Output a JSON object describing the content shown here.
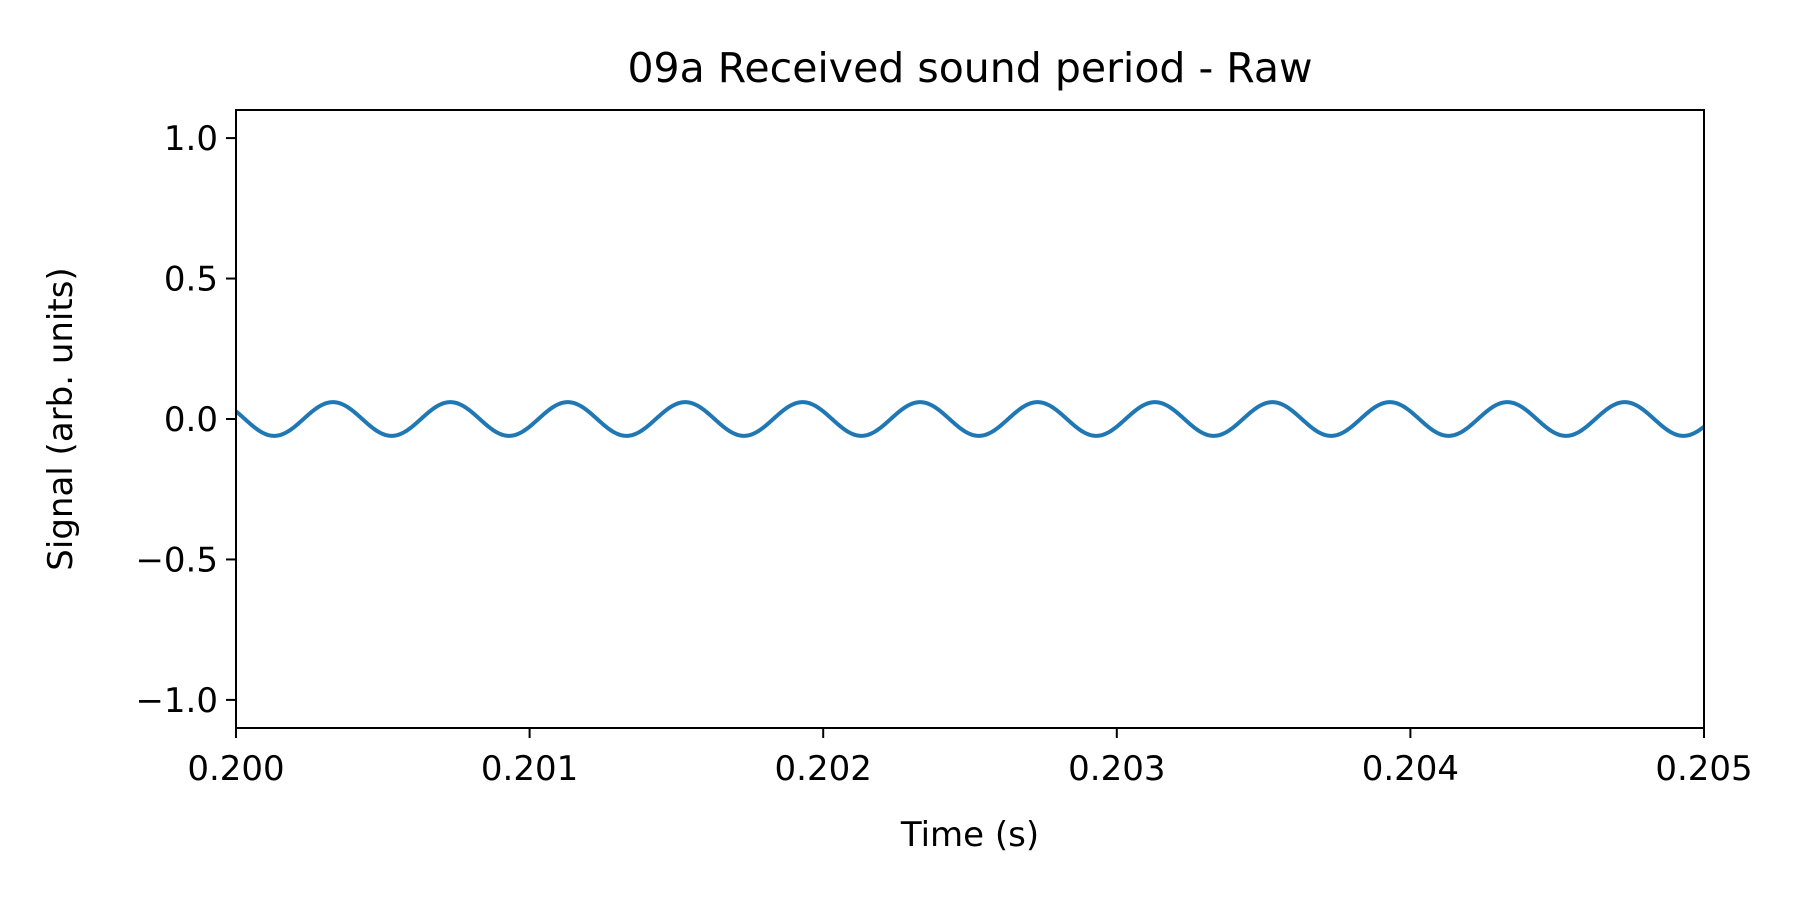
{
  "chart_data": {
    "type": "line",
    "title": "09a Received sound period - Raw",
    "xlabel": "Time (s)",
    "ylabel": "Signal (arb. units)",
    "xlim": [
      0.2,
      0.205
    ],
    "ylim": [
      -1.1,
      1.1
    ],
    "xticks": [
      0.2,
      0.201,
      0.202,
      0.203,
      0.204,
      0.205
    ],
    "xtick_labels": [
      "0.200",
      "0.201",
      "0.202",
      "0.203",
      "0.204",
      "0.205"
    ],
    "yticks": [
      -1.0,
      -0.5,
      0.0,
      0.5,
      1.0
    ],
    "ytick_labels": [
      "−1.0",
      "−0.5",
      "0.0",
      "0.5",
      "1.0"
    ],
    "grid": false,
    "series": [
      {
        "color": "#1f77b4",
        "waveform": "sine",
        "amplitude": 0.06,
        "frequency_hz": 2500,
        "peak_times": [
          0.20033,
          0.20073,
          0.20113,
          0.20153,
          0.20193,
          0.20233,
          0.20273,
          0.20313,
          0.20353,
          0.20393,
          0.20433,
          0.20473
        ],
        "trough_times": [
          0.20013,
          0.20053,
          0.20093,
          0.20133,
          0.20173,
          0.20213,
          0.20253,
          0.20293,
          0.20333,
          0.20373,
          0.20413,
          0.20453,
          0.20493
        ],
        "y_start": 0.042,
        "y_end": -0.045
      }
    ]
  }
}
